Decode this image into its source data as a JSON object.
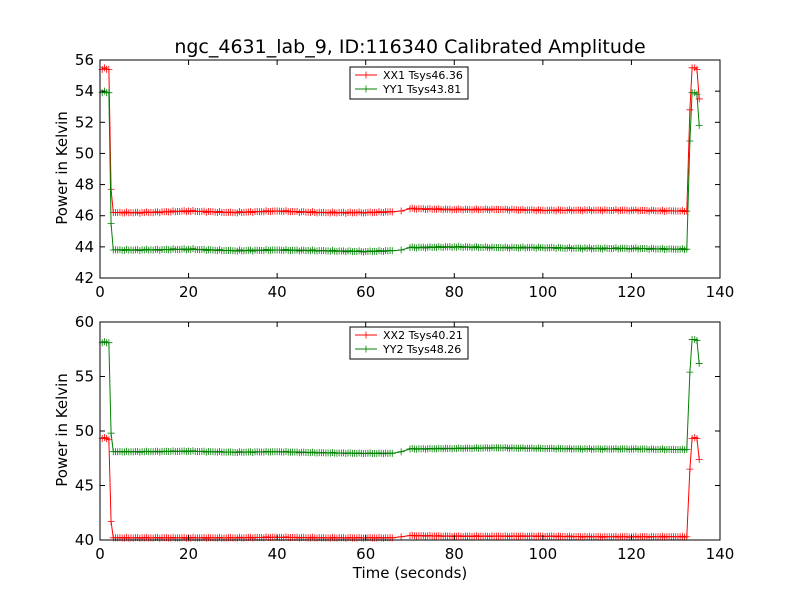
{
  "chart_data": [
    {
      "type": "line",
      "title": "ngc_4631_lab_9, ID:116340 Calibrated Amplitude",
      "xlabel": "",
      "ylabel": "Power in Kelvin",
      "xlim": [
        0,
        140
      ],
      "ylim": [
        42,
        56
      ],
      "xticks": [
        "0",
        "20",
        "40",
        "60",
        "80",
        "100",
        "120",
        "140"
      ],
      "yticks": [
        "42",
        "44",
        "46",
        "48",
        "50",
        "52",
        "54",
        "56"
      ],
      "grid": false,
      "legend": "top-center",
      "series": [
        {
          "name": "XX1 Tsys46.36",
          "color": "#ff0000",
          "points": [
            [
              0.5,
              55.4
            ],
            [
              1,
              55.5
            ],
            [
              1.5,
              55.4
            ],
            [
              2,
              55.4
            ],
            [
              2.5,
              47.7
            ],
            [
              3,
              46.2
            ],
            [
              10,
              46.2
            ],
            [
              20,
              46.3
            ],
            [
              30,
              46.2
            ],
            [
              40,
              46.3
            ],
            [
              50,
              46.2
            ],
            [
              60,
              46.2
            ],
            [
              66,
              46.25
            ],
            [
              68,
              46.3
            ],
            [
              70,
              46.45
            ],
            [
              80,
              46.4
            ],
            [
              90,
              46.4
            ],
            [
              100,
              46.35
            ],
            [
              110,
              46.35
            ],
            [
              120,
              46.35
            ],
            [
              130,
              46.3
            ],
            [
              132.5,
              46.3
            ],
            [
              133.2,
              52.8
            ],
            [
              133.7,
              55.5
            ],
            [
              134.3,
              55.5
            ],
            [
              134.8,
              55.4
            ],
            [
              135.3,
              53.5
            ]
          ]
        },
        {
          "name": "YY1 Tsys43.81",
          "color": "#008000",
          "points": [
            [
              0.5,
              53.9
            ],
            [
              1,
              54.0
            ],
            [
              1.5,
              53.9
            ],
            [
              2,
              53.9
            ],
            [
              2.5,
              45.5
            ],
            [
              3,
              43.8
            ],
            [
              10,
              43.8
            ],
            [
              20,
              43.85
            ],
            [
              30,
              43.75
            ],
            [
              40,
              43.8
            ],
            [
              50,
              43.75
            ],
            [
              60,
              43.7
            ],
            [
              66,
              43.75
            ],
            [
              68,
              43.8
            ],
            [
              70,
              43.95
            ],
            [
              80,
              44.0
            ],
            [
              90,
              43.95
            ],
            [
              100,
              43.95
            ],
            [
              110,
              43.9
            ],
            [
              120,
              43.9
            ],
            [
              130,
              43.85
            ],
            [
              132.5,
              43.85
            ],
            [
              133.2,
              50.8
            ],
            [
              133.7,
              53.9
            ],
            [
              134.3,
              53.9
            ],
            [
              134.8,
              53.8
            ],
            [
              135.3,
              51.8
            ]
          ]
        }
      ]
    },
    {
      "type": "line",
      "title": "",
      "xlabel": "Time (seconds)",
      "ylabel": "Power in Kelvin",
      "xlim": [
        0,
        140
      ],
      "ylim": [
        40,
        60
      ],
      "xticks": [
        "0",
        "20",
        "40",
        "60",
        "80",
        "100",
        "120",
        "140"
      ],
      "yticks": [
        "40",
        "45",
        "50",
        "55",
        "60"
      ],
      "grid": false,
      "legend": "top-center",
      "series": [
        {
          "name": "XX2 Tsys40.21",
          "color": "#ff0000",
          "points": [
            [
              0.5,
              49.3
            ],
            [
              1,
              49.4
            ],
            [
              1.5,
              49.3
            ],
            [
              2,
              49.2
            ],
            [
              2.5,
              41.7
            ],
            [
              3,
              40.2
            ],
            [
              10,
              40.2
            ],
            [
              20,
              40.2
            ],
            [
              30,
              40.2
            ],
            [
              40,
              40.25
            ],
            [
              50,
              40.2
            ],
            [
              60,
              40.2
            ],
            [
              66,
              40.2
            ],
            [
              68,
              40.3
            ],
            [
              70,
              40.4
            ],
            [
              80,
              40.35
            ],
            [
              90,
              40.35
            ],
            [
              100,
              40.35
            ],
            [
              110,
              40.3
            ],
            [
              120,
              40.3
            ],
            [
              130,
              40.3
            ],
            [
              132.5,
              40.3
            ],
            [
              133.2,
              46.5
            ],
            [
              133.7,
              49.3
            ],
            [
              134.3,
              49.4
            ],
            [
              134.8,
              49.3
            ],
            [
              135.3,
              47.4
            ]
          ]
        },
        {
          "name": "YY2 Tsys48.26",
          "color": "#008000",
          "points": [
            [
              0.5,
              58.1
            ],
            [
              1,
              58.2
            ],
            [
              1.5,
              58.1
            ],
            [
              2,
              58.1
            ],
            [
              2.5,
              49.8
            ],
            [
              3,
              48.1
            ],
            [
              10,
              48.1
            ],
            [
              20,
              48.15
            ],
            [
              30,
              48.05
            ],
            [
              40,
              48.1
            ],
            [
              50,
              48.0
            ],
            [
              60,
              47.95
            ],
            [
              66,
              47.95
            ],
            [
              68,
              48.1
            ],
            [
              70,
              48.35
            ],
            [
              80,
              48.4
            ],
            [
              90,
              48.45
            ],
            [
              100,
              48.4
            ],
            [
              110,
              48.35
            ],
            [
              120,
              48.35
            ],
            [
              130,
              48.3
            ],
            [
              132.5,
              48.3
            ],
            [
              133.2,
              55.4
            ],
            [
              133.7,
              58.4
            ],
            [
              134.3,
              58.4
            ],
            [
              134.8,
              58.3
            ],
            [
              135.3,
              56.2
            ]
          ]
        }
      ]
    }
  ]
}
